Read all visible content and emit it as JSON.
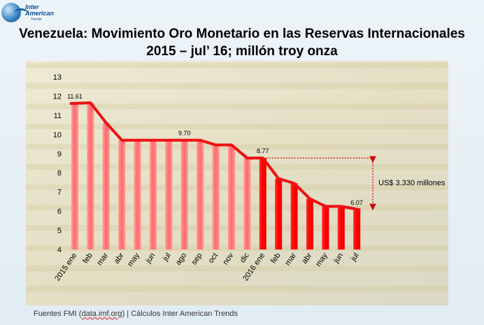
{
  "logo": {
    "line1": "Inter",
    "line2": "American",
    "line3": "Trends"
  },
  "title": {
    "line1": "Venezuela: Movimiento Oro Monetario en las Reservas Internacionales",
    "line2": "2015 – jul’ 16; millón troy onza"
  },
  "footer": {
    "prefix": "Fuentes FMI (",
    "link": "data.imf.org",
    "suffix": ") | Cálculos Inter American Trends"
  },
  "colors": {
    "light_bar": "#ff8080",
    "dark_bar": "#ff0000",
    "line": "#ee1111",
    "annot": "#cc0000"
  },
  "chart_data": {
    "type": "bar",
    "categories": [
      "2015 ene",
      "feb",
      "mar",
      "abr",
      "may",
      "jun",
      "jul",
      "ago",
      "sep",
      "oct",
      "nov",
      "dic",
      "2016 ene",
      "feb",
      "mar",
      "abr",
      "may",
      "jun",
      "jul"
    ],
    "values": [
      11.61,
      11.65,
      10.6,
      9.7,
      9.7,
      9.7,
      9.7,
      9.7,
      9.7,
      9.45,
      9.45,
      8.77,
      8.77,
      7.7,
      7.45,
      6.65,
      6.25,
      6.25,
      6.07
    ],
    "data_labels": [
      {
        "index": 0,
        "text": "11.61"
      },
      {
        "index": 7,
        "text": "9.70"
      },
      {
        "index": 12,
        "text": "8.77"
      },
      {
        "index": 18,
        "text": "6.07"
      }
    ],
    "ylim": [
      4,
      13
    ],
    "yticks": [
      "4",
      "5",
      "6",
      "7",
      "8",
      "9",
      "10",
      "11",
      "12",
      "13"
    ],
    "overlay_line": true,
    "annotation": "US$ 3.330 millones",
    "grid": false
  }
}
